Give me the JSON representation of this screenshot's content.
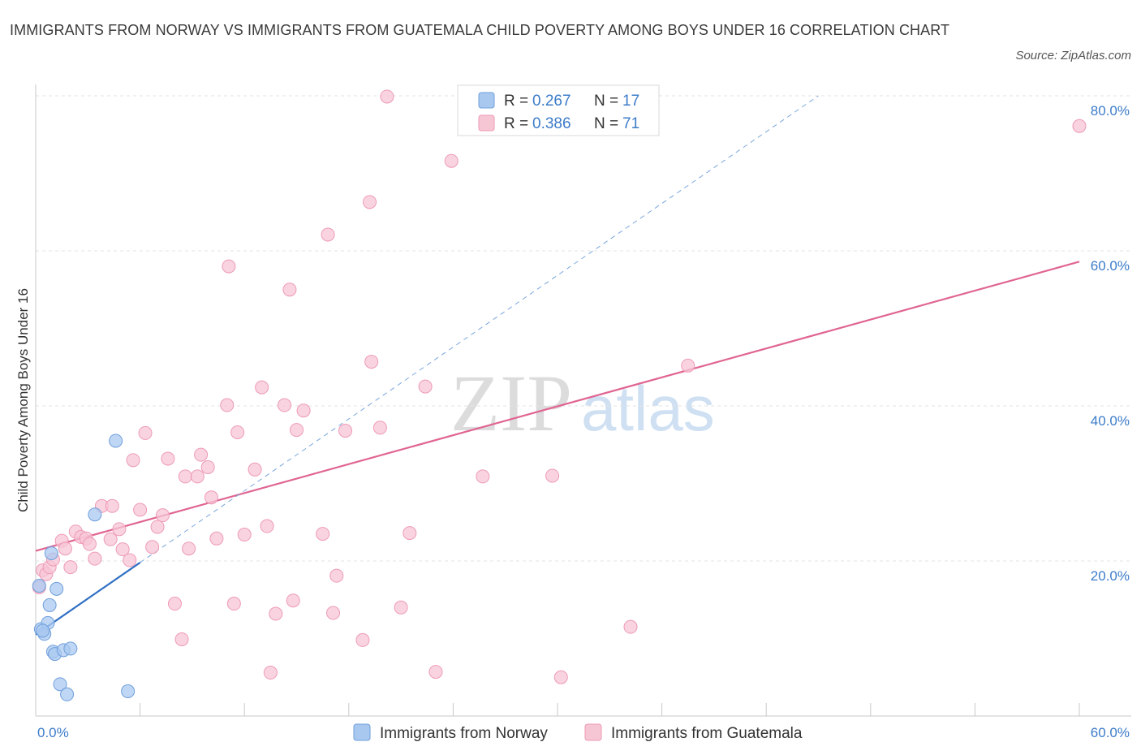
{
  "title": "IMMIGRANTS FROM NORWAY VS IMMIGRANTS FROM GUATEMALA CHILD POVERTY AMONG BOYS UNDER 16 CORRELATION CHART",
  "source": "Source: ZipAtlas.com",
  "watermark": {
    "zip": "ZIP",
    "atlas": "atlas"
  },
  "legend_box": {
    "row1": {
      "r_label": "R = ",
      "r_value": "0.267",
      "n_label": "N = ",
      "n_value": "17"
    },
    "row2": {
      "r_label": "R = ",
      "r_value": "0.386",
      "n_label": "N = ",
      "n_value": "71"
    }
  },
  "colors": {
    "norway_fill": "#a9c8f0",
    "norway_stroke": "#6f9fdb",
    "norway_line": "#2f6fc4",
    "guatemala_fill": "#f7c6d5",
    "guatemala_stroke": "#ee9ab4",
    "guatemala_line": "#e06592",
    "tick_text": "#3d7cc9",
    "grid": "#e3e3e3"
  },
  "chart_data": {
    "type": "scatter",
    "title": "IMMIGRANTS FROM NORWAY VS IMMIGRANTS FROM GUATEMALA CHILD POVERTY AMONG BOYS UNDER 16 CORRELATION CHART",
    "xlabel": "",
    "ylabel": "Child Poverty Among Boys Under 16",
    "xlim": [
      0,
      60
    ],
    "ylim": [
      0,
      80
    ],
    "x_tick_labels": [
      "0.0%",
      "60.0%"
    ],
    "y_ticks": [
      20,
      40,
      60,
      80
    ],
    "y_tick_labels": [
      "20.0%",
      "40.0%",
      "60.0%",
      "80.0%"
    ],
    "grid": true,
    "legend_position": "bottom-center",
    "series": [
      {
        "name": "Immigrants from Norway",
        "r": 0.267,
        "n": 17,
        "points": [
          [
            0.2,
            16.8
          ],
          [
            0.3,
            11.2
          ],
          [
            0.5,
            10.6
          ],
          [
            0.7,
            12.0
          ],
          [
            0.8,
            14.3
          ],
          [
            0.9,
            21.0
          ],
          [
            1.0,
            8.3
          ],
          [
            1.1,
            8.0
          ],
          [
            1.2,
            16.4
          ],
          [
            1.4,
            4.1
          ],
          [
            1.6,
            8.5
          ],
          [
            1.8,
            2.8
          ],
          [
            2.0,
            8.7
          ],
          [
            3.4,
            26.0
          ],
          [
            4.6,
            35.5
          ],
          [
            5.3,
            3.2
          ],
          [
            0.4,
            11.0
          ]
        ],
        "trend": {
          "x0": 0.0,
          "y0": 10.5,
          "x1": 6.0,
          "y1": 19.8
        },
        "trend_extension": {
          "x0": 6.0,
          "y0": 19.8,
          "x1": 45.0,
          "y1": 80.0
        }
      },
      {
        "name": "Immigrants from Guatemala",
        "r": 0.386,
        "n": 71,
        "points": [
          [
            0.2,
            16.6
          ],
          [
            0.4,
            18.8
          ],
          [
            0.6,
            18.3
          ],
          [
            0.8,
            19.2
          ],
          [
            1.0,
            20.2
          ],
          [
            1.5,
            22.6
          ],
          [
            1.7,
            21.6
          ],
          [
            2.0,
            19.2
          ],
          [
            2.3,
            23.8
          ],
          [
            2.6,
            23.1
          ],
          [
            2.9,
            22.9
          ],
          [
            3.1,
            22.2
          ],
          [
            3.4,
            20.3
          ],
          [
            3.8,
            27.1
          ],
          [
            4.3,
            22.8
          ],
          [
            4.4,
            27.1
          ],
          [
            4.8,
            24.1
          ],
          [
            5.0,
            21.5
          ],
          [
            5.4,
            20.1
          ],
          [
            5.6,
            33.0
          ],
          [
            6.0,
            26.6
          ],
          [
            6.3,
            36.5
          ],
          [
            6.7,
            21.8
          ],
          [
            7.0,
            24.4
          ],
          [
            7.3,
            25.9
          ],
          [
            7.6,
            33.2
          ],
          [
            8.0,
            14.5
          ],
          [
            8.4,
            9.9
          ],
          [
            8.6,
            30.9
          ],
          [
            8.8,
            21.6
          ],
          [
            9.3,
            30.9
          ],
          [
            9.5,
            33.7
          ],
          [
            9.9,
            32.1
          ],
          [
            10.1,
            28.2
          ],
          [
            10.4,
            22.9
          ],
          [
            11.0,
            40.1
          ],
          [
            11.4,
            14.5
          ],
          [
            11.6,
            36.6
          ],
          [
            12.0,
            23.4
          ],
          [
            12.6,
            31.8
          ],
          [
            13.0,
            42.4
          ],
          [
            13.3,
            24.5
          ],
          [
            13.5,
            5.6
          ],
          [
            13.8,
            13.2
          ],
          [
            14.3,
            40.1
          ],
          [
            14.6,
            55.0
          ],
          [
            14.8,
            14.9
          ],
          [
            15.0,
            36.9
          ],
          [
            15.4,
            39.4
          ],
          [
            16.5,
            23.5
          ],
          [
            16.8,
            62.1
          ],
          [
            17.1,
            13.3
          ],
          [
            17.3,
            18.1
          ],
          [
            17.8,
            36.8
          ],
          [
            18.8,
            9.8
          ],
          [
            19.2,
            66.3
          ],
          [
            19.3,
            45.7
          ],
          [
            19.8,
            37.2
          ],
          [
            20.2,
            79.9
          ],
          [
            21.0,
            14.0
          ],
          [
            21.5,
            23.6
          ],
          [
            22.4,
            42.5
          ],
          [
            23.0,
            5.7
          ],
          [
            23.9,
            71.6
          ],
          [
            25.7,
            30.9
          ],
          [
            29.7,
            31.0
          ],
          [
            30.2,
            5.0
          ],
          [
            34.2,
            11.5
          ],
          [
            37.5,
            45.2
          ],
          [
            60.0,
            76.1
          ],
          [
            11.1,
            58.0
          ]
        ],
        "trend": {
          "x0": 0.0,
          "y0": 21.3,
          "x1": 60.0,
          "y1": 58.6
        }
      }
    ]
  },
  "bottom_legend": {
    "norway_label": "Immigrants from Norway",
    "guatemala_label": "Immigrants from Guatemala"
  }
}
